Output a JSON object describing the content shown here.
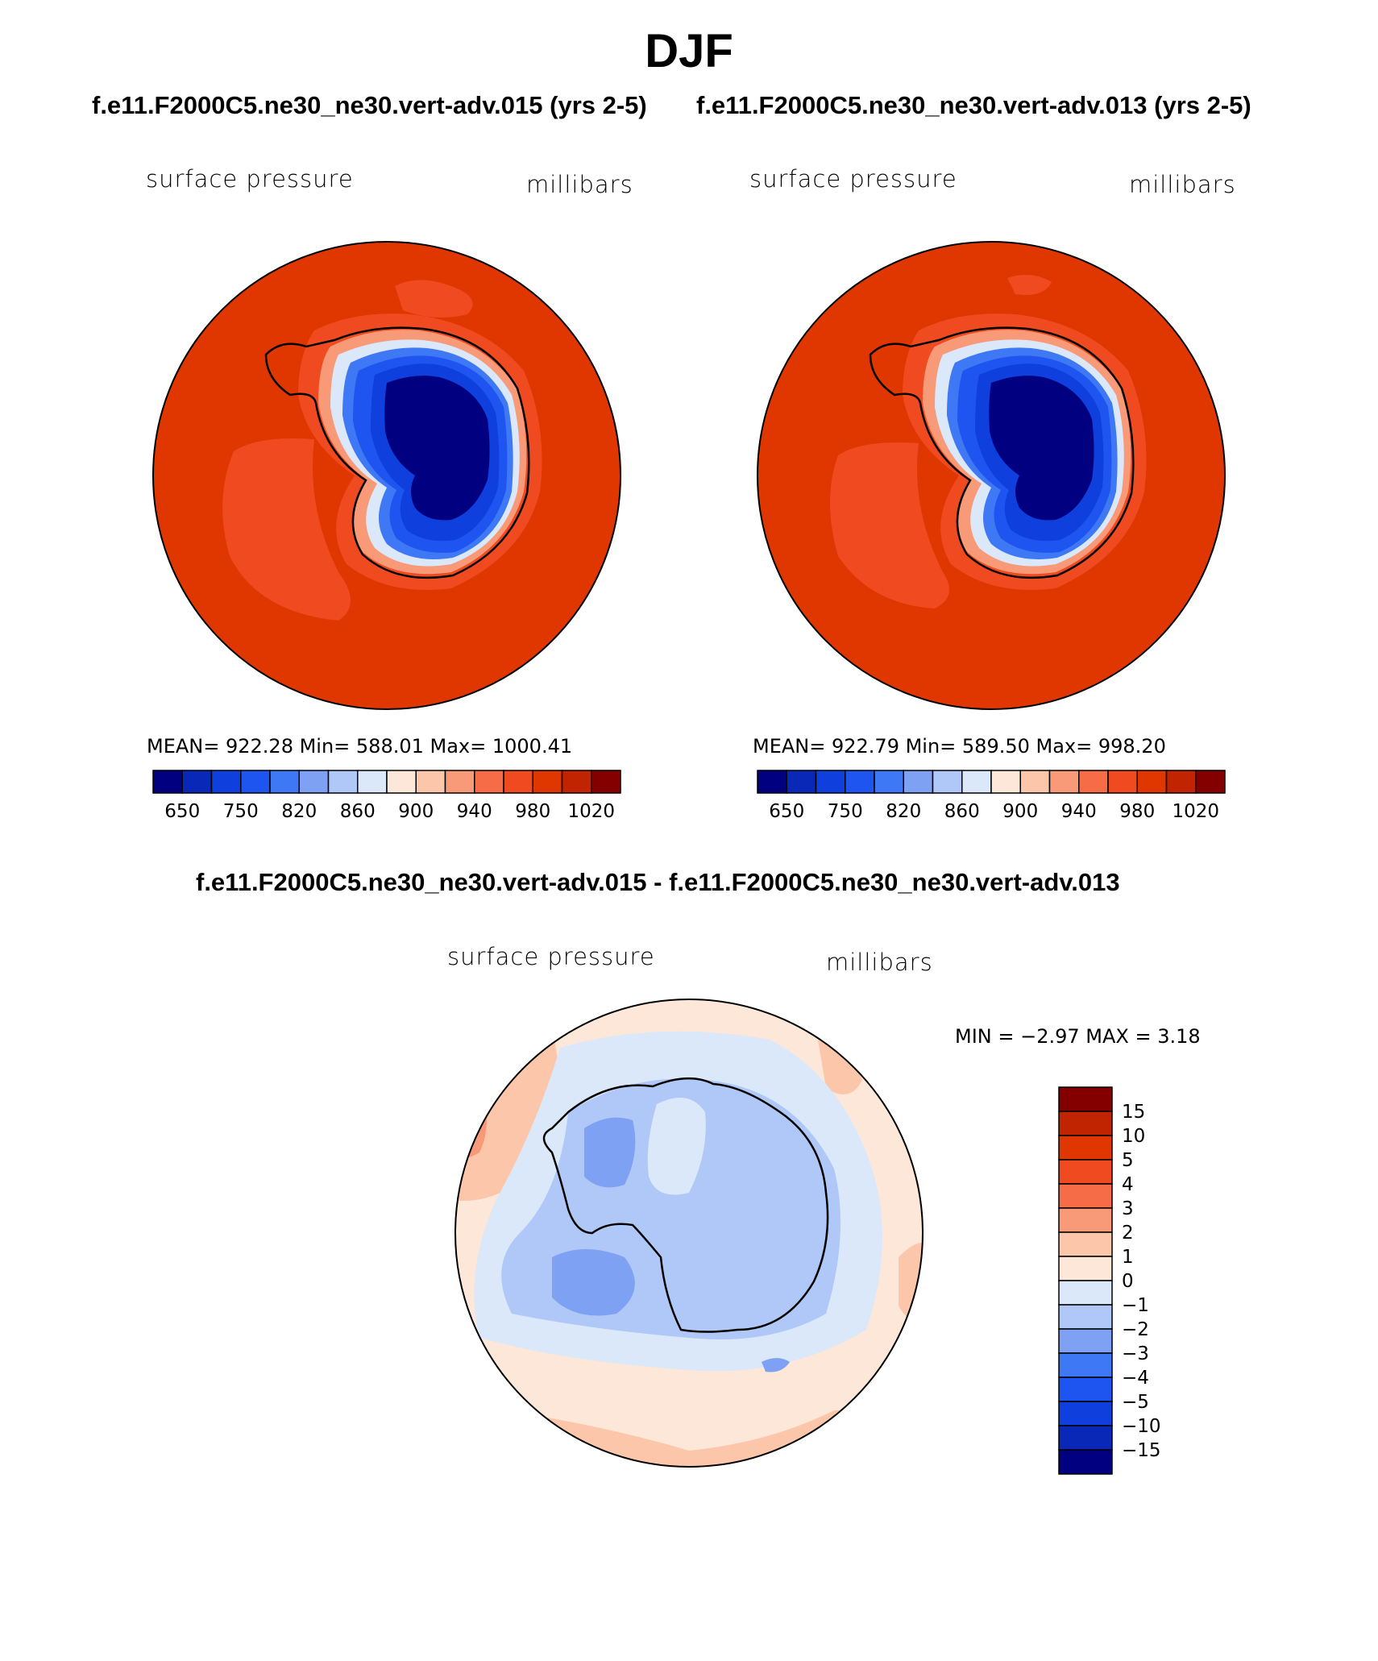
{
  "page_title": "DJF",
  "case_titles": {
    "left": "f.e11.F2000C5.ne30_ne30.vert-adv.015 (yrs 2-5)",
    "right": "f.e11.F2000C5.ne30_ne30.vert-adv.013 (yrs 2-5)"
  },
  "diff_title": "f.e11.F2000C5.ne30_ne30.vert-adv.015 - f.e11.F2000C5.ne30_ne30.vert-adv.013",
  "panels": {
    "left": {
      "variable": "surface pressure",
      "units": "millibars",
      "stats": "MEAN= 922.28   Min= 588.01   Max= 1000.41"
    },
    "right": {
      "variable": "surface pressure",
      "units": "millibars",
      "stats": "MEAN= 922.79   Min= 589.50   Max= 998.20"
    },
    "diff": {
      "variable": "surface pressure",
      "units": "millibars",
      "minmax": "MIN =   −2.97  MAX =     3.18"
    }
  },
  "chart_data": [
    {
      "type": "map",
      "projection": "south polar stereographic",
      "field": "surface pressure",
      "units": "millibars",
      "mean": 922.28,
      "min": 588.01,
      "max": 1000.41,
      "colorbar": {
        "orientation": "horizontal",
        "tick_labels": [
          "650",
          "750",
          "820",
          "860",
          "900",
          "940",
          "980",
          "1020"
        ],
        "colors": [
          "#000080",
          "#0a28b8",
          "#0f3fdd",
          "#1e55f0",
          "#3f78f4",
          "#7ea1f3",
          "#b0c8f7",
          "#dbe8fa",
          "#fde7d8",
          "#fbc6aa",
          "#f89a77",
          "#f56c46",
          "#f04a20",
          "#e03700",
          "#c02400",
          "#840000"
        ]
      }
    },
    {
      "type": "map",
      "projection": "south polar stereographic",
      "field": "surface pressure",
      "units": "millibars",
      "mean": 922.79,
      "min": 589.5,
      "max": 998.2,
      "colorbar": {
        "orientation": "horizontal",
        "tick_labels": [
          "650",
          "750",
          "820",
          "860",
          "900",
          "940",
          "980",
          "1020"
        ],
        "colors": [
          "#000080",
          "#0a28b8",
          "#0f3fdd",
          "#1e55f0",
          "#3f78f4",
          "#7ea1f3",
          "#b0c8f7",
          "#dbe8fa",
          "#fde7d8",
          "#fbc6aa",
          "#f89a77",
          "#f56c46",
          "#f04a20",
          "#e03700",
          "#c02400",
          "#840000"
        ]
      }
    },
    {
      "type": "map",
      "projection": "south polar stereographic",
      "field": "surface pressure difference",
      "units": "millibars",
      "min": -2.97,
      "max": 3.18,
      "colorbar": {
        "orientation": "vertical",
        "tick_labels": [
          "15",
          "10",
          "5",
          "4",
          "3",
          "2",
          "1",
          "0",
          "−1",
          "−2",
          "−3",
          "−4",
          "−5",
          "−10",
          "−15"
        ],
        "colors": [
          "#840000",
          "#c02400",
          "#e03700",
          "#f04a20",
          "#f56c46",
          "#f89a77",
          "#fbc6aa",
          "#fde7d8",
          "#dbe8fa",
          "#b0c8f7",
          "#7ea1f3",
          "#3f78f4",
          "#1e55f0",
          "#0f3fdd",
          "#0a28b8",
          "#000080"
        ]
      }
    }
  ]
}
